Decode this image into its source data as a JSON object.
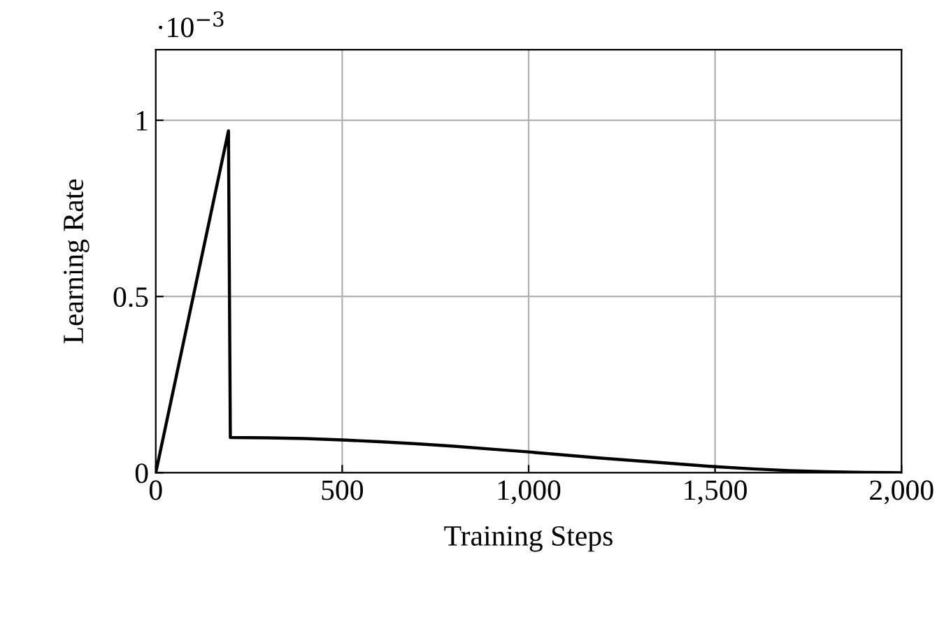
{
  "chart_data": {
    "type": "line",
    "xlabel": "Training Steps",
    "ylabel": "Learning Rate",
    "annotations": [
      "·10$^{−3}$"
    ],
    "x": [
      0,
      195,
      200,
      300,
      400,
      500,
      600,
      700,
      800,
      900,
      1000,
      1100,
      1200,
      1300,
      1400,
      1500,
      1600,
      1700,
      1800,
      1900,
      2000
    ],
    "series": [
      {
        "color": "#000000",
        "values": [
          0,
          0.97,
          0.1,
          0.099,
          0.097,
          0.093,
          0.088,
          0.082,
          0.075,
          0.067,
          0.059,
          0.05,
          0.041,
          0.033,
          0.025,
          0.017,
          0.011,
          0.006,
          0.003,
          0.001,
          0
        ]
      }
    ],
    "xlim": [
      0,
      2000
    ],
    "xticks": [
      0,
      500,
      {
        "value": 1000,
        "label": "1,000"
      },
      {
        "value": 1500,
        "label": "1,500"
      },
      {
        "value": 2000,
        "label": "2,000"
      }
    ],
    "ylim": [
      0,
      1.2
    ],
    "yticks": [
      0,
      0.5,
      1
    ],
    "grid": true,
    "marker": "none",
    "line_style": "solid"
  }
}
